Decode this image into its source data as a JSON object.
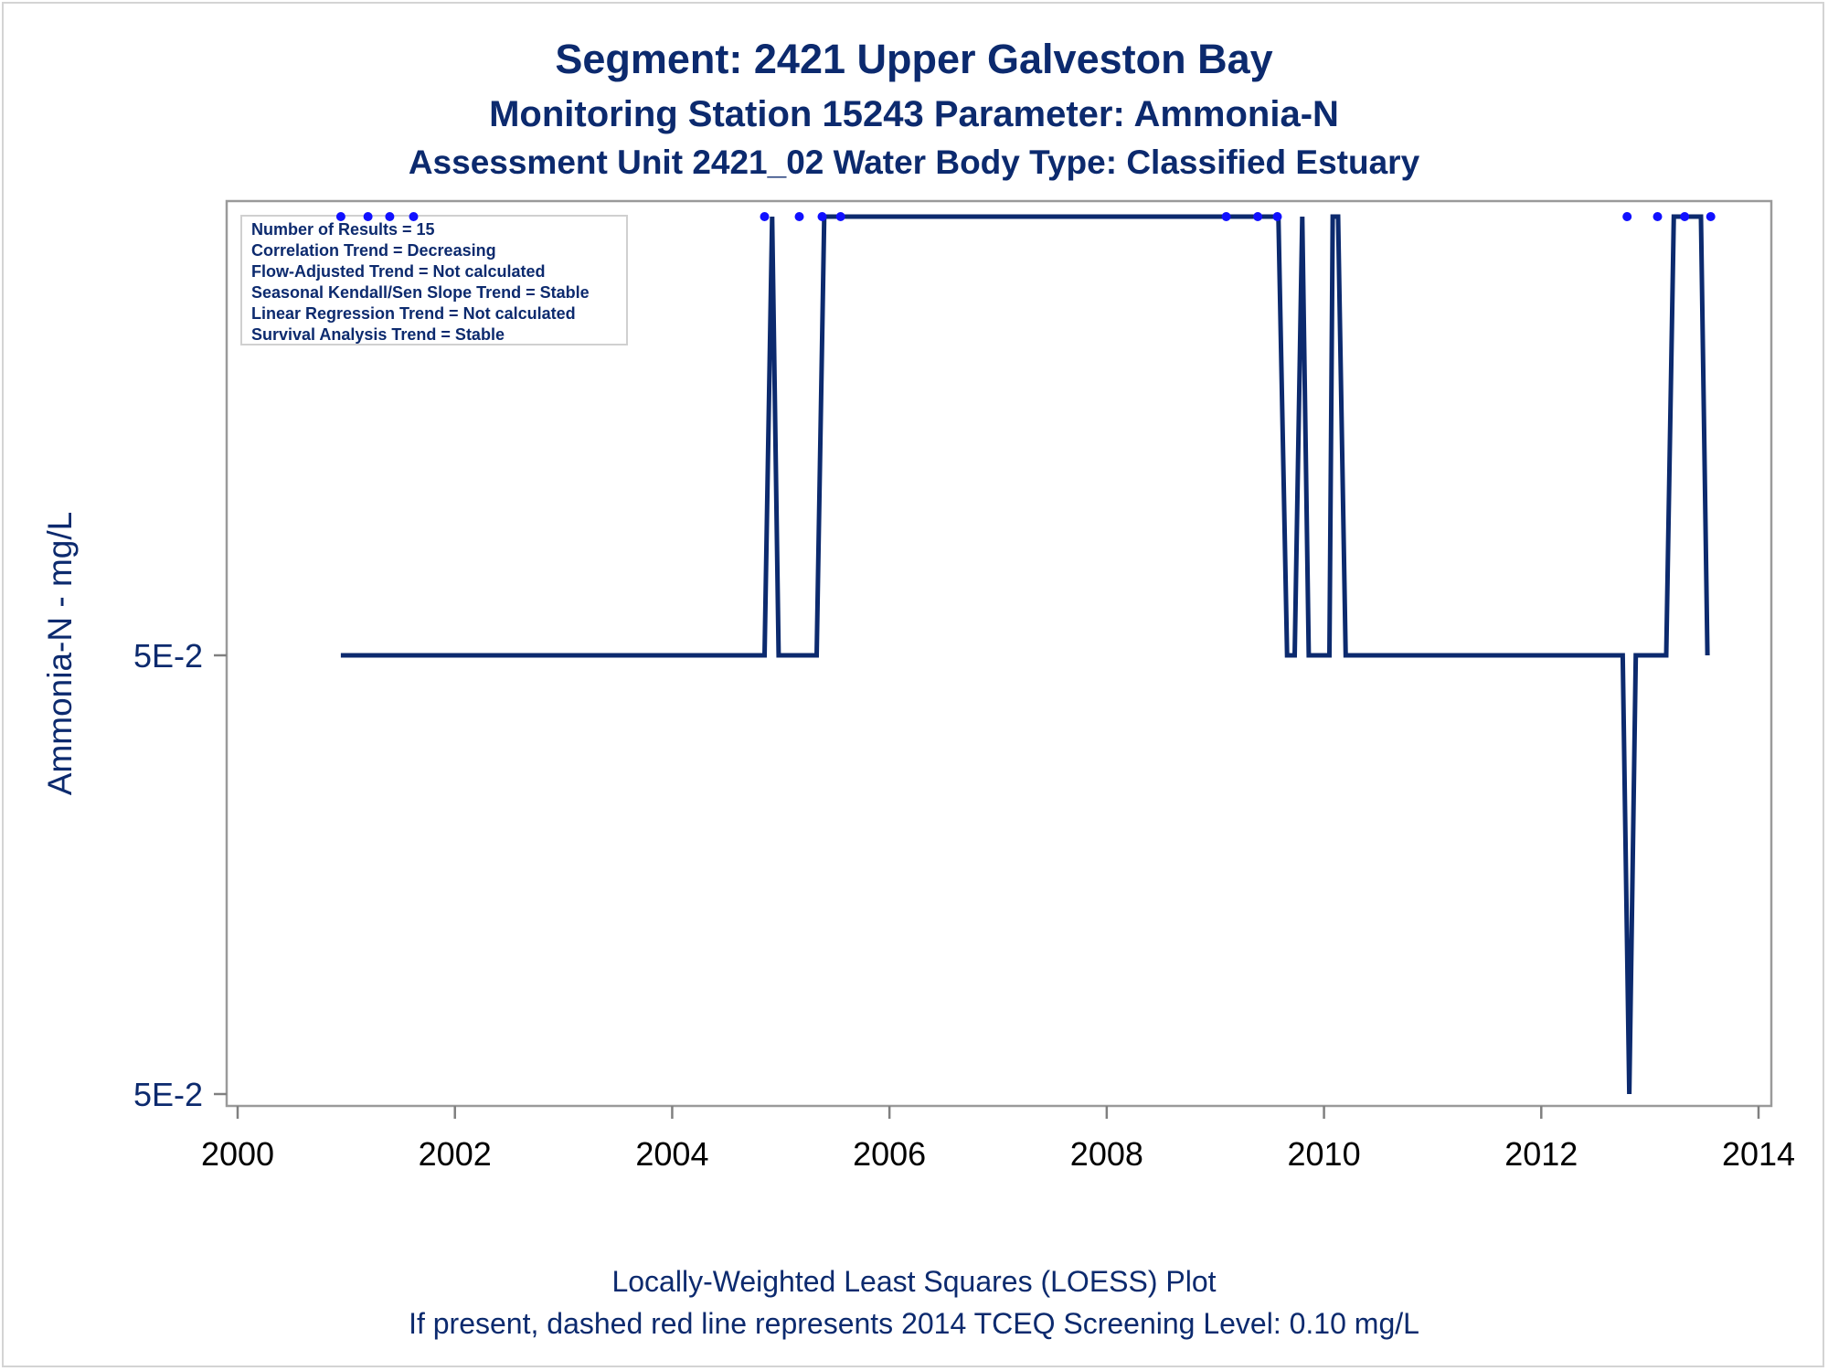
{
  "chart_data": {
    "type": "line",
    "title": "Segment: 2421  Upper Galveston Bay",
    "subtitle": "Monitoring Station 15243 Parameter: Ammonia-N",
    "subtitle2": "Assessment Unit 2421_02   Water Body Type: Classified Estuary",
    "ylabel": "Ammonia-N - mg/L",
    "xlabel": "",
    "footnote1": "Locally-Weighted Least Squares (LOESS) Plot",
    "footnote2": "If present, dashed red line represents 2014 TCEQ Screening Level: 0.10 mg/L",
    "xlim": [
      2000,
      2014
    ],
    "x_ticks": [
      "2000",
      "2002",
      "2004",
      "2006",
      "2008",
      "2010",
      "2012",
      "2014"
    ],
    "y_ticks": [
      {
        "label": "5E-2",
        "level": 0.5
      },
      {
        "label": "5E-2",
        "level": 0
      }
    ],
    "y_level_range": [
      0,
      1.0
    ],
    "grid": false,
    "stats_box": [
      "Number of Results = 15",
      "Correlation Trend = Decreasing",
      "Flow-Adjusted Trend = Not calculated",
      "Seasonal Kendall/Sen Slope Trend = Stable",
      "Linear Regression Trend = Not calculated",
      "Survival Analysis Trend = Stable"
    ],
    "series": [
      {
        "x": [
          2000.95,
          2004.85,
          2004.92,
          2004.98,
          2005.33,
          2005.4,
          2009.58,
          2009.66,
          2009.73,
          2009.8,
          2009.86,
          2010.05,
          2010.08,
          2010.13,
          2010.2,
          2012.75,
          2012.81,
          2012.87,
          2013.15,
          2013.22,
          2013.47,
          2013.53
        ],
        "y": [
          0.5,
          0.5,
          1.0,
          0.5,
          0.5,
          1.0,
          1.0,
          0.5,
          0.5,
          1.0,
          0.5,
          0.5,
          1.0,
          1.0,
          0.5,
          0.5,
          0.0,
          0.5,
          0.5,
          1.0,
          1.0,
          0.5
        ]
      }
    ],
    "points": {
      "x": [
        2000.95,
        2001.2,
        2001.4,
        2001.62,
        2004.85,
        2005.17,
        2005.38,
        2005.55,
        2009.1,
        2009.39,
        2009.57,
        2012.79,
        2013.07,
        2013.32,
        2013.56
      ],
      "y": [
        1,
        1,
        1,
        1,
        1,
        1,
        1,
        1,
        1,
        1,
        1,
        1,
        1,
        1,
        1
      ]
    },
    "colors": {
      "line": "#0c2a6e",
      "points": "#1010ff",
      "text": "#0c2a6e",
      "axis": "#808080"
    }
  }
}
